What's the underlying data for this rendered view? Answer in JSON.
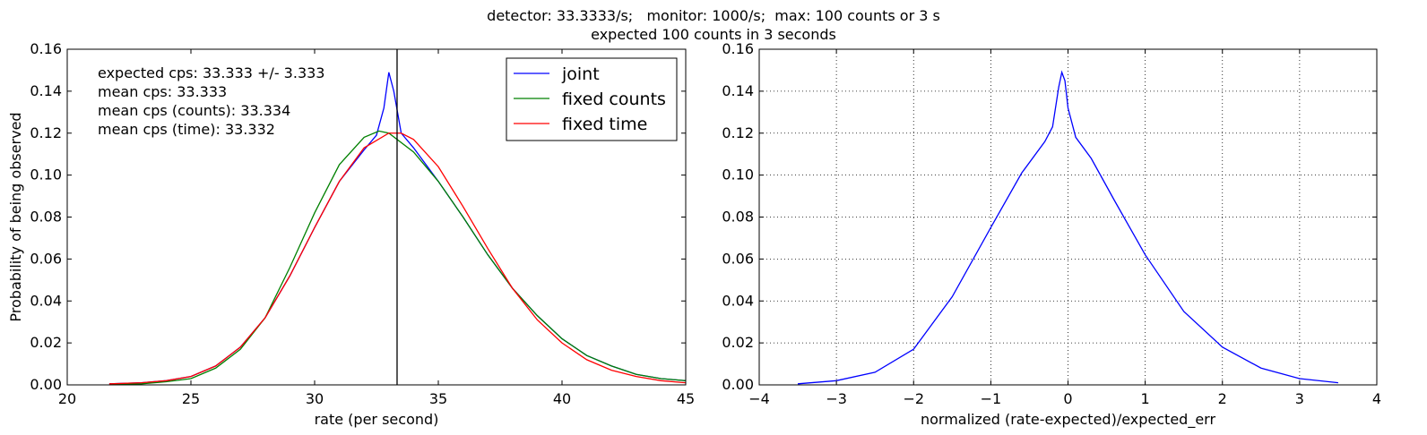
{
  "suptitle": {
    "line1": "detector: 33.3333/s;   monitor: 1000/s;  max: 100 counts or 3 s",
    "line2": "expected 100 counts in 3 seconds"
  },
  "chart_data": [
    {
      "type": "line",
      "xlabel": "rate (per second)",
      "ylabel": "Probability of being observed",
      "xlim": [
        20,
        45
      ],
      "ylim": [
        0,
        0.16
      ],
      "xticks": [
        20,
        25,
        30,
        35,
        40,
        45
      ],
      "yticks": [
        0.0,
        0.02,
        0.04,
        0.06,
        0.08,
        0.1,
        0.12,
        0.14,
        0.16
      ],
      "grid": false,
      "legend": "top-right",
      "vline": 33.333,
      "annotations": [
        "expected cps: 33.333 +/- 3.333",
        "mean cps: 33.333",
        "mean cps (counts): 33.334",
        "mean cps (time): 33.332"
      ],
      "series": [
        {
          "name": "joint",
          "color": "#0000ff",
          "x": [
            21.7,
            23,
            24,
            25,
            26,
            27,
            28,
            29,
            30,
            31,
            32,
            32.5,
            32.8,
            33.0,
            33.2,
            33.5,
            34,
            35,
            36,
            37,
            38,
            39,
            40,
            41,
            42,
            43,
            44,
            45
          ],
          "y": [
            0.0005,
            0.001,
            0.002,
            0.004,
            0.009,
            0.018,
            0.032,
            0.052,
            0.075,
            0.097,
            0.112,
            0.119,
            0.132,
            0.149,
            0.14,
            0.12,
            0.113,
            0.097,
            0.08,
            0.062,
            0.046,
            0.033,
            0.022,
            0.014,
            0.009,
            0.005,
            0.003,
            0.002
          ]
        },
        {
          "name": "fixed counts",
          "color": "#008000",
          "x": [
            21.7,
            23,
            24,
            25,
            26,
            27,
            28,
            29,
            30,
            31,
            32,
            32.6,
            33,
            34,
            35,
            36,
            37,
            38,
            39,
            40,
            41,
            42,
            43,
            44,
            45
          ],
          "y": [
            0.0002,
            0.0005,
            0.0015,
            0.003,
            0.008,
            0.017,
            0.032,
            0.056,
            0.082,
            0.105,
            0.118,
            0.121,
            0.12,
            0.111,
            0.097,
            0.08,
            0.062,
            0.046,
            0.033,
            0.022,
            0.014,
            0.009,
            0.005,
            0.003,
            0.002
          ]
        },
        {
          "name": "fixed time",
          "color": "#ff0000",
          "x": [
            21.7,
            23,
            24,
            25,
            26,
            27,
            28,
            29,
            30,
            31,
            32,
            33,
            33.5,
            34,
            35,
            36,
            37,
            38,
            39,
            40,
            41,
            42,
            43,
            44,
            45
          ],
          "y": [
            0.0005,
            0.001,
            0.002,
            0.004,
            0.009,
            0.018,
            0.032,
            0.052,
            0.075,
            0.097,
            0.113,
            0.12,
            0.12,
            0.117,
            0.104,
            0.085,
            0.065,
            0.046,
            0.031,
            0.02,
            0.012,
            0.007,
            0.004,
            0.002,
            0.001
          ]
        }
      ]
    },
    {
      "type": "line",
      "xlabel": "normalized (rate-expected)/expected_err",
      "ylabel": "",
      "xlim": [
        -4,
        4
      ],
      "ylim": [
        0,
        0.16
      ],
      "xticks": [
        -4,
        -3,
        -2,
        -1,
        0,
        1,
        2,
        3,
        4
      ],
      "yticks": [
        0.0,
        0.02,
        0.04,
        0.06,
        0.08,
        0.1,
        0.12,
        0.14,
        0.16
      ],
      "grid": true,
      "series": [
        {
          "color": "#0000ff",
          "x": [
            -3.5,
            -3.0,
            -2.5,
            -2.0,
            -1.5,
            -1.0,
            -0.6,
            -0.3,
            -0.2,
            -0.12,
            -0.08,
            -0.04,
            0.0,
            0.1,
            0.3,
            0.6,
            1.0,
            1.5,
            2.0,
            2.5,
            3.0,
            3.5
          ],
          "y": [
            0.0005,
            0.002,
            0.006,
            0.017,
            0.042,
            0.075,
            0.101,
            0.116,
            0.123,
            0.142,
            0.149,
            0.145,
            0.132,
            0.118,
            0.108,
            0.088,
            0.062,
            0.035,
            0.018,
            0.008,
            0.003,
            0.001
          ]
        }
      ]
    }
  ]
}
